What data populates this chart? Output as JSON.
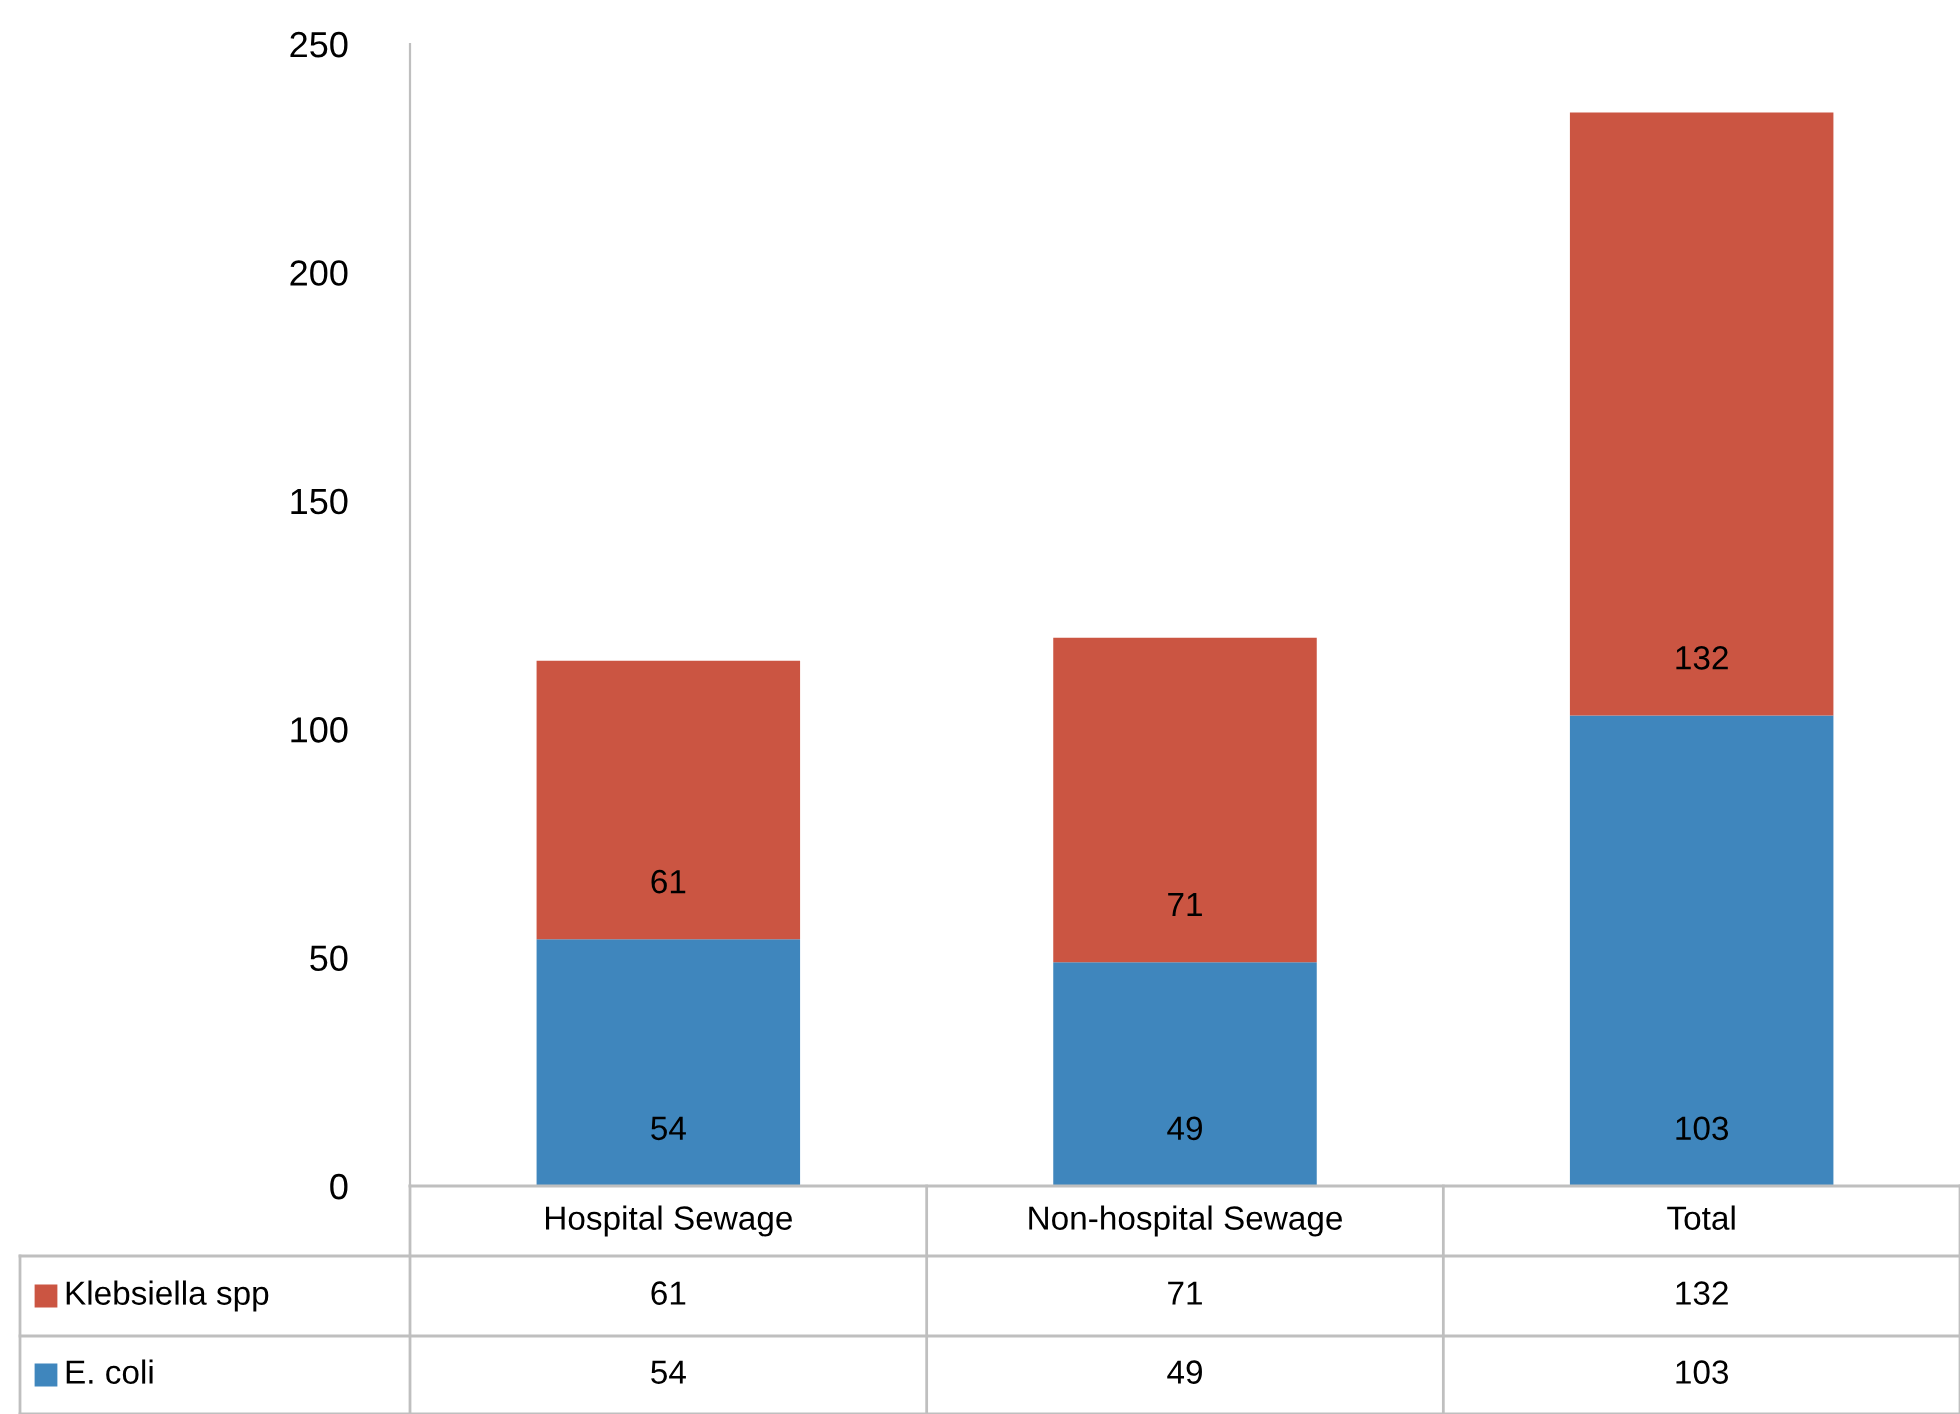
{
  "chart_data": {
    "type": "bar",
    "stacked": true,
    "categories": [
      "Hospital Sewage",
      "Non-hospital Sewage",
      "Total"
    ],
    "series": [
      {
        "name": "E. coli",
        "color": "#3f86bd",
        "values": [
          54,
          49,
          103
        ],
        "value_labels": [
          "54",
          "49",
          "103"
        ]
      },
      {
        "name": "Klebsiella spp",
        "color": "#cb5542",
        "values": [
          61,
          71,
          132
        ],
        "value_labels": [
          "61",
          "71",
          "132"
        ]
      }
    ],
    "ylim": [
      0,
      250
    ],
    "yticks": [
      0,
      50,
      100,
      150,
      200,
      250
    ],
    "annotations": [
      "61",
      "71",
      "132",
      "54",
      "49",
      "103"
    ],
    "grid": false,
    "legend": "bottom"
  }
}
